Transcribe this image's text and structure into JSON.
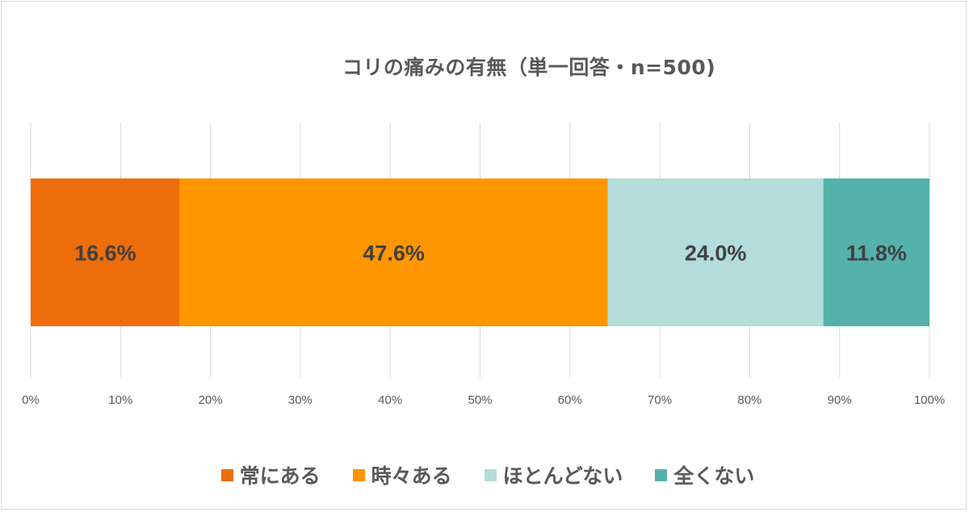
{
  "chart_data": {
    "type": "bar",
    "orientation": "horizontal",
    "stacked": "percent",
    "title": "コリの痛みの有無（単一回答・n=500)",
    "xlim": [
      0,
      100
    ],
    "x_ticks": [
      "0%",
      "10%",
      "20%",
      "30%",
      "40%",
      "50%",
      "60%",
      "70%",
      "80%",
      "90%",
      "100%"
    ],
    "grid": "vertical",
    "legend_position": "bottom",
    "series": [
      {
        "name": "常にある",
        "value": 16.6,
        "label": "16.6%",
        "color": "#ED6D0B"
      },
      {
        "name": "時々ある",
        "value": 47.6,
        "label": "47.6%",
        "color": "#FF9600"
      },
      {
        "name": "ほとんどない",
        "value": 24.0,
        "label": "24.0%",
        "color": "#B3DCDA"
      },
      {
        "name": "全くない",
        "value": 11.8,
        "label": "11.8%",
        "color": "#54B2AA"
      }
    ]
  }
}
